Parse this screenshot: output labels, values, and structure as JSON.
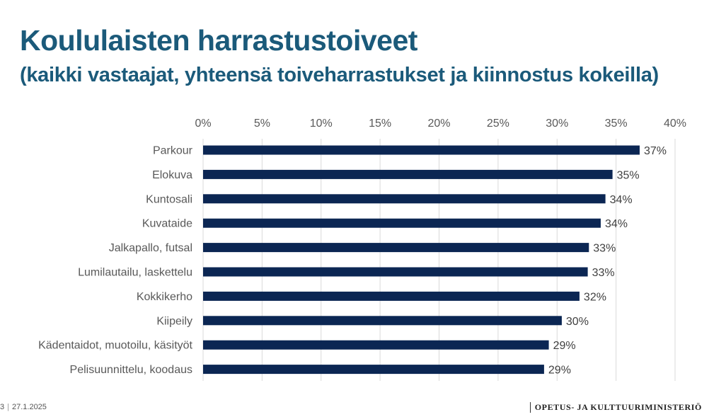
{
  "title": "Koululaisten harrastustoiveet",
  "subtitle": "(kaikki vastaajat, yhteensä toiveharrastukset ja kiinnostus kokeilla)",
  "footer": {
    "page": "3",
    "date": "27.1.2025",
    "org": "OPETUS- JA KULTTUURIMINISTERIÖ"
  },
  "colors": {
    "bar": "#0b2653",
    "title": "#1b5a7a",
    "grid": "#d9d9d9"
  },
  "chart_data": {
    "type": "bar",
    "orientation": "horizontal",
    "categories": [
      "Parkour",
      "Elokuva ",
      "Kuntosali",
      "Kuvataide",
      "Jalkapallo, futsal",
      "Lumilautailu, laskettelu",
      "Kokkikerho",
      "Kiipeily",
      "Kädentaidot, muotoilu, käsityöt",
      "Pelisuunnittelu, koodaus"
    ],
    "values": [
      37,
      34.7,
      34.1,
      33.7,
      32.7,
      32.6,
      31.9,
      30.4,
      29.3,
      28.9
    ],
    "data_labels": [
      "37%",
      "35%",
      "34%",
      "34%",
      "33%",
      "33%",
      "32%",
      "30%",
      "29%",
      "29%"
    ],
    "xlim": [
      0,
      40
    ],
    "ticks": [
      "0%",
      "5%",
      "10%",
      "15%",
      "20%",
      "25%",
      "30%",
      "35%",
      "40%"
    ],
    "tick_values": [
      0,
      5,
      10,
      15,
      20,
      25,
      30,
      35,
      40
    ],
    "axis_position": "top",
    "grid": true,
    "legend": "none"
  }
}
